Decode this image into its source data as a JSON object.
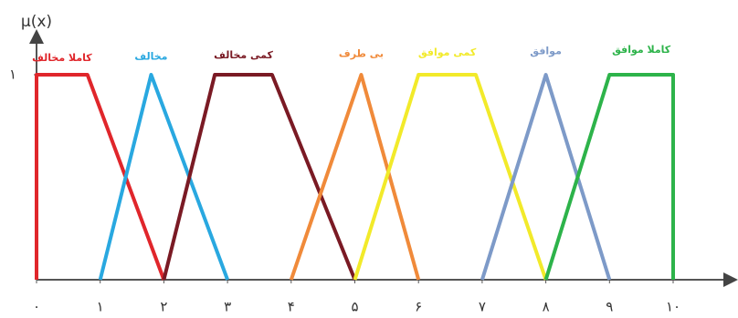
{
  "chart_data": {
    "type": "line",
    "y_label": "μ(x)",
    "xlim": [
      0,
      10.9
    ],
    "ylim": [
      0,
      1.16
    ],
    "xticks": [
      {
        "value": 0,
        "label": "۰"
      },
      {
        "value": 1,
        "label": "۱"
      },
      {
        "value": 2,
        "label": "۲"
      },
      {
        "value": 3,
        "label": "۳"
      },
      {
        "value": 4,
        "label": "۴"
      },
      {
        "value": 5,
        "label": "۵"
      },
      {
        "value": 6,
        "label": "۶"
      },
      {
        "value": 7,
        "label": "۷"
      },
      {
        "value": 8,
        "label": "۸"
      },
      {
        "value": 9,
        "label": "۹"
      },
      {
        "value": 10,
        "label": "۱۰"
      }
    ],
    "yticks": [
      {
        "value": 1,
        "label": "۱"
      }
    ],
    "series": [
      {
        "name": "کاملا مخالف",
        "color": "#e0262b",
        "x": [
          0,
          0,
          0.8,
          2
        ],
        "values": [
          0,
          1,
          1,
          0
        ]
      },
      {
        "name": "مخالف",
        "color": "#29a8e0",
        "x": [
          1,
          1.8,
          3
        ],
        "values": [
          0,
          1,
          0
        ]
      },
      {
        "name": "کمی مخالف",
        "color": "#7a1a24",
        "x": [
          2,
          2.8,
          3.7,
          5
        ],
        "values": [
          0,
          1,
          1,
          0
        ]
      },
      {
        "name": "بی طرف",
        "color": "#f08a3a",
        "x": [
          4,
          5.1,
          6
        ],
        "values": [
          0,
          1,
          0
        ]
      },
      {
        "name": "کمی موافق",
        "color": "#f2ea2a",
        "x": [
          5,
          6,
          6.9,
          8
        ],
        "values": [
          0,
          1,
          1,
          0
        ]
      },
      {
        "name": "موافق",
        "color": "#7d9ac8",
        "x": [
          7,
          8,
          9
        ],
        "values": [
          0,
          1,
          0
        ]
      },
      {
        "name": "کاملا موافق",
        "color": "#2db34a",
        "x": [
          8,
          9,
          10,
          10
        ],
        "values": [
          0,
          1,
          1,
          0
        ]
      }
    ]
  }
}
